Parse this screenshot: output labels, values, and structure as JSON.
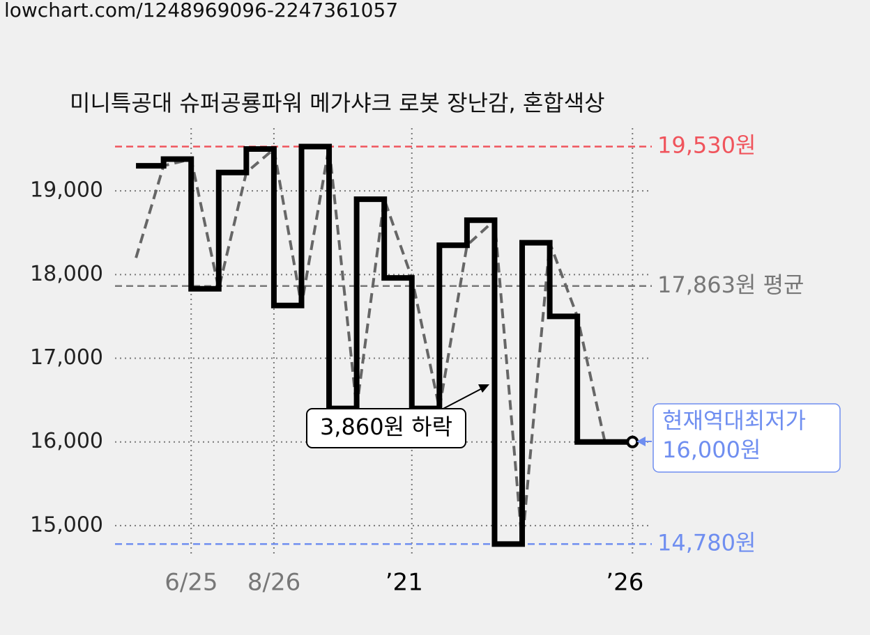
{
  "header": {
    "url": "lowchart.com/1248969096-2247361057"
  },
  "chart_data": {
    "type": "step",
    "title": "미니특공대 슈퍼공룡파워 메가샤크 로봇 장난감, 혼합색상",
    "x": [
      0,
      1,
      2,
      3,
      4,
      5,
      6,
      7,
      8,
      9,
      10,
      11,
      12,
      13,
      14,
      15,
      16,
      17,
      18
    ],
    "series": [
      {
        "color": "#000000",
        "style": "solid",
        "values": [
          19300,
          19380,
          17830,
          19220,
          19500,
          17630,
          19530,
          16400,
          18900,
          17960,
          16400,
          18350,
          18650,
          14780,
          18380,
          17500,
          16000,
          16000,
          16000
        ]
      },
      {
        "color": "#666666",
        "style": "dashed",
        "values": [
          18200,
          19300,
          19380,
          17830,
          19220,
          19500,
          17630,
          19530,
          16400,
          18900,
          17960,
          16400,
          18350,
          18650,
          14780,
          18380,
          17500,
          16000,
          null
        ]
      }
    ],
    "xlim": [
      -0.76,
      18.7
    ],
    "xticks": [
      {
        "value": 2,
        "label": "6/25"
      },
      {
        "value": 5,
        "label": "8/26"
      },
      {
        "value": 10,
        "label": "’21"
      },
      {
        "value": 18,
        "label": "’26"
      }
    ],
    "xtick_colors": [
      "#777777",
      "#777777",
      "#000000",
      "#000000"
    ],
    "ylim": [
      14400,
      19750
    ],
    "yticks": [
      {
        "value": 15000,
        "label": "15,000"
      },
      {
        "value": 16000,
        "label": "16,000"
      },
      {
        "value": 17000,
        "label": "17,000"
      },
      {
        "value": 18000,
        "label": "18,000"
      },
      {
        "value": 19000,
        "label": "19,000"
      }
    ],
    "grid": true,
    "reference_lines": [
      {
        "value": 19530,
        "label": "19,530원",
        "color": "#f0545c"
      },
      {
        "value": 17863,
        "label": "17,863원 평균",
        "color": "#777777"
      },
      {
        "value": 14780,
        "label": "14,780원",
        "color": "#6f8ef0"
      }
    ],
    "annotation": "3,860원 하락",
    "current_label": [
      "현재역대최저가",
      "16,000원"
    ],
    "current_color": "#6f8ef0"
  }
}
